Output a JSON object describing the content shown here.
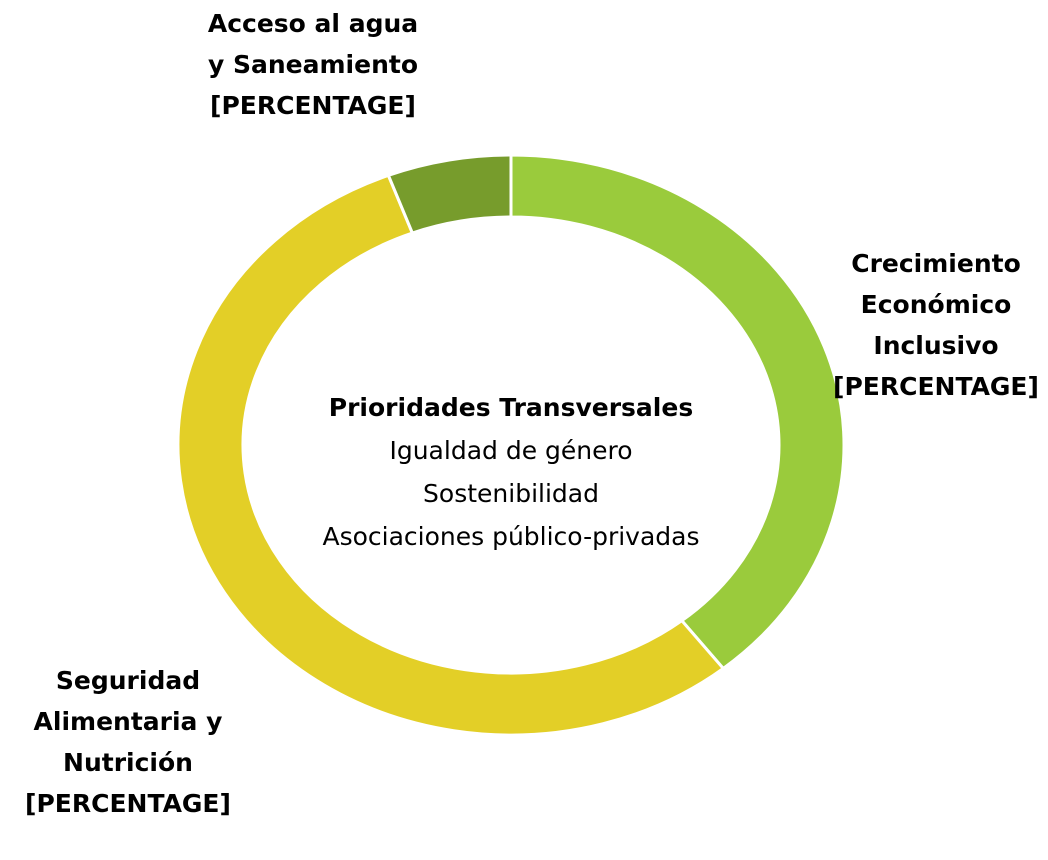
{
  "chart_data": {
    "type": "donut",
    "categories": [
      "Crecimiento Económico Inclusivo",
      "Seguridad Alimentaria y Nutrición",
      "Acceso al agua y Saneamiento"
    ],
    "values": [
      39,
      55,
      6
    ],
    "value_labels": [
      "[PERCENTAGE]",
      "[PERCENTAGE]",
      "[PERCENTAGE]"
    ],
    "colors": [
      "#9acb3c",
      "#e3cf27",
      "#779c2c"
    ],
    "center_text": {
      "title": "Prioridades Transversales",
      "lines": [
        "Igualdad de género",
        "Sostenibilidad",
        "Asociaciones público-privadas"
      ]
    }
  }
}
